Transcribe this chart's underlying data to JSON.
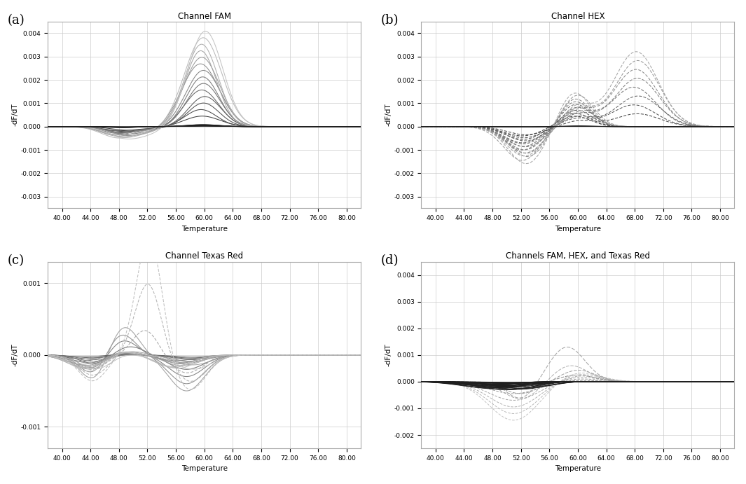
{
  "title_a": "Channel FAM",
  "title_b": "Channel HEX",
  "title_c": "Channel Texas Red",
  "title_d": "Channels FAM, HEX, and Texas Red",
  "xlabel": "Temperature",
  "ylabel": "-dF/dT",
  "label_a": "(a)",
  "label_b": "(b)",
  "label_c": "(c)",
  "label_d": "(d)",
  "xlim": [
    38,
    82
  ],
  "xticks": [
    40.0,
    44.0,
    48.0,
    52.0,
    56.0,
    60.0,
    64.0,
    68.0,
    72.0,
    76.0,
    80.0
  ],
  "ylim_ab": [
    -0.0035,
    0.0045
  ],
  "yticks_ab": [
    -0.003,
    -0.002,
    -0.001,
    0.0,
    0.001,
    0.002,
    0.003,
    0.004
  ],
  "ylim_c": [
    -0.0013,
    0.0013
  ],
  "yticks_c": [
    -0.001,
    0.0,
    0.001
  ],
  "ylim_d": [
    -0.0025,
    0.0045
  ],
  "yticks_d": [
    -0.002,
    -0.001,
    0.0,
    0.001,
    0.002,
    0.003,
    0.004
  ],
  "figsize": [
    10.65,
    6.91
  ],
  "dpi": 100
}
